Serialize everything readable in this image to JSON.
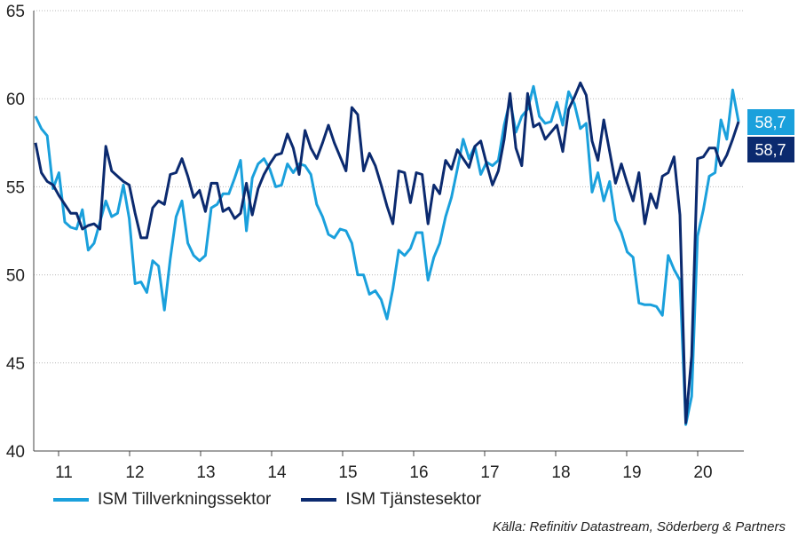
{
  "chart_data": {
    "type": "line",
    "xlabel": "",
    "ylabel": "",
    "ylim": [
      40,
      65
    ],
    "yticks": [
      "65",
      "60",
      "55",
      "50",
      "45",
      "40"
    ],
    "year_labels": [
      "11",
      "12",
      "13",
      "14",
      "15",
      "16",
      "17",
      "18",
      "19",
      "20"
    ],
    "grid": "horizontal dotted",
    "legend_position": "bottom-left",
    "series": [
      {
        "name": "ISM Tillverkningssektor",
        "color": "#1aa0dc",
        "end_label": "58,7",
        "values": [
          59.0,
          58.3,
          57.9,
          54.9,
          55.8,
          53.0,
          52.7,
          52.6,
          53.7,
          51.4,
          51.8,
          53.0,
          54.2,
          53.3,
          53.5,
          55.1,
          53.2,
          49.5,
          49.6,
          49.0,
          50.8,
          50.5,
          48.0,
          50.9,
          53.3,
          54.2,
          51.8,
          51.1,
          50.8,
          51.1,
          53.8,
          54.0,
          54.6,
          54.6,
          55.5,
          56.5,
          52.5,
          55.5,
          56.3,
          56.6,
          56.0,
          55.0,
          55.1,
          56.3,
          55.8,
          56.3,
          56.2,
          55.7,
          54.0,
          53.3,
          52.3,
          52.1,
          52.6,
          52.5,
          51.8,
          50.0,
          50.0,
          48.9,
          49.1,
          48.6,
          47.5,
          49.2,
          51.4,
          51.1,
          51.5,
          52.4,
          52.4,
          49.7,
          51.0,
          51.8,
          53.3,
          54.4,
          56.0,
          57.7,
          56.6,
          57.3,
          55.7,
          56.4,
          56.2,
          56.5,
          58.5,
          59.9,
          58.1,
          59.0,
          59.4,
          60.7,
          59.0,
          58.6,
          58.7,
          59.8,
          58.5,
          60.4,
          59.7,
          58.3,
          58.6,
          54.7,
          55.8,
          54.2,
          55.3,
          53.1,
          52.4,
          51.3,
          51.0,
          48.4,
          48.3,
          48.3,
          48.2,
          47.7,
          51.1,
          50.3,
          49.7,
          41.5,
          43.1,
          52.2,
          53.7,
          55.6,
          55.8,
          58.8,
          57.7,
          60.5,
          58.7
        ]
      },
      {
        "name": "ISM Tjänstesektor",
        "color": "#0b2a6f",
        "end_label": "58,7",
        "values": [
          57.5,
          55.8,
          55.3,
          55.1,
          54.5,
          54.0,
          53.5,
          53.5,
          52.6,
          52.8,
          52.9,
          52.6,
          57.3,
          55.9,
          55.6,
          55.3,
          55.1,
          53.5,
          52.1,
          52.1,
          53.8,
          54.2,
          54.0,
          55.7,
          55.8,
          56.6,
          55.6,
          54.4,
          54.8,
          53.6,
          55.2,
          55.2,
          53.6,
          53.8,
          53.2,
          53.5,
          55.2,
          53.4,
          54.9,
          55.7,
          56.3,
          56.8,
          56.9,
          58.0,
          57.2,
          55.7,
          58.2,
          57.2,
          56.6,
          57.5,
          58.5,
          57.5,
          56.7,
          55.9,
          59.5,
          59.1,
          55.9,
          56.9,
          56.2,
          55.1,
          53.9,
          52.9,
          55.9,
          55.8,
          54.1,
          55.8,
          55.7,
          52.9,
          55.1,
          54.6,
          56.5,
          56.0,
          57.1,
          56.6,
          56.1,
          57.3,
          57.6,
          56.3,
          55.1,
          55.9,
          57.7,
          60.3,
          57.2,
          56.2,
          60.3,
          58.4,
          58.6,
          57.7,
          58.1,
          58.5,
          57.0,
          59.4,
          60.1,
          60.9,
          60.2,
          57.6,
          56.5,
          58.8,
          57.0,
          55.2,
          56.3,
          55.2,
          54.2,
          55.8,
          52.9,
          54.6,
          53.8,
          55.6,
          55.8,
          56.7,
          53.4,
          41.6,
          45.4,
          56.6,
          56.7,
          57.2,
          57.2,
          56.2,
          56.8,
          57.7,
          58.7
        ]
      }
    ]
  },
  "source": "Källa: Refinitiv Datastream, Söderberg & Partners"
}
